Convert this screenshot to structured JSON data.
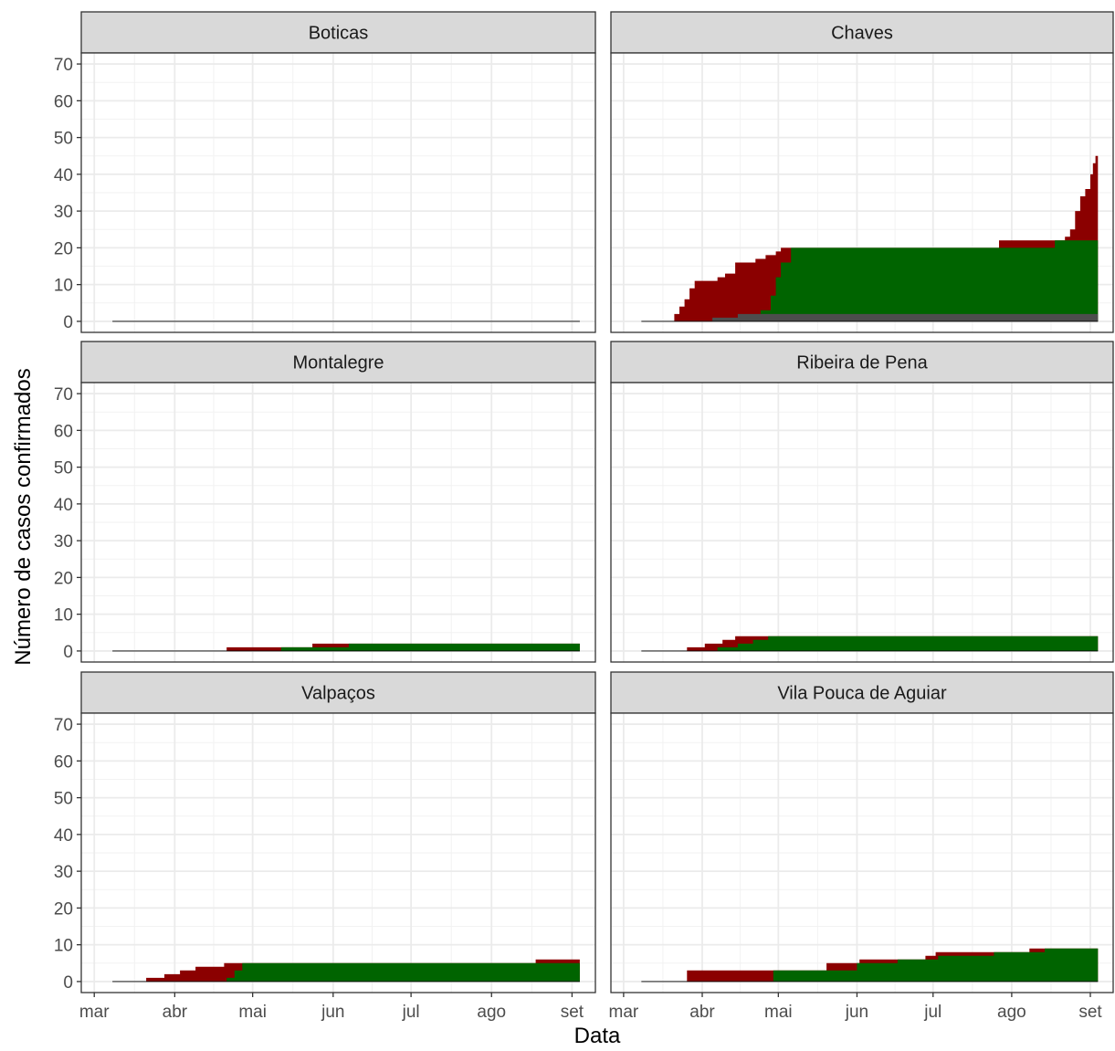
{
  "chart_data": {
    "type": "area",
    "xlabel": "Data",
    "ylabel": "Número de casos confirmados",
    "ylim": [
      -3,
      73
    ],
    "xlim": [
      "2020-02-25",
      "2020-09-10"
    ],
    "y_ticks": [
      0,
      10,
      20,
      30,
      40,
      50,
      60,
      70
    ],
    "x_ticks": [
      {
        "date": "2020-03-01",
        "label": "mar"
      },
      {
        "date": "2020-04-01",
        "label": "abr"
      },
      {
        "date": "2020-05-01",
        "label": "mai"
      },
      {
        "date": "2020-06-01",
        "label": "jun"
      },
      {
        "date": "2020-07-01",
        "label": "jul"
      },
      {
        "date": "2020-08-01",
        "label": "ago"
      },
      {
        "date": "2020-09-01",
        "label": "set"
      }
    ],
    "grid": true,
    "colors": {
      "active": "#8b0000",
      "recovered": "#006400",
      "deaths": "#4d4d4d",
      "strip_bg": "#d9d9d9",
      "grid": "#ebebeb"
    },
    "facets": [
      {
        "name": "Boticas",
        "active": [
          [
            "2020-03-08",
            0
          ],
          [
            "2020-09-04",
            0
          ]
        ],
        "recovered": [
          [
            "2020-03-08",
            0
          ],
          [
            "2020-09-04",
            0
          ]
        ],
        "deaths": [
          [
            "2020-03-08",
            0
          ],
          [
            "2020-09-04",
            0
          ]
        ]
      },
      {
        "name": "Chaves",
        "active": [
          [
            "2020-03-08",
            0
          ],
          [
            "2020-03-20",
            0
          ],
          [
            "2020-03-21",
            2
          ],
          [
            "2020-03-23",
            4
          ],
          [
            "2020-03-25",
            6
          ],
          [
            "2020-03-27",
            9
          ],
          [
            "2020-03-29",
            11
          ],
          [
            "2020-04-06",
            11
          ],
          [
            "2020-04-07",
            12
          ],
          [
            "2020-04-10",
            13
          ],
          [
            "2020-04-14",
            16
          ],
          [
            "2020-04-20",
            16
          ],
          [
            "2020-04-22",
            17
          ],
          [
            "2020-04-26",
            18
          ],
          [
            "2020-04-30",
            19
          ],
          [
            "2020-05-02",
            20
          ],
          [
            "2020-05-15",
            20
          ],
          [
            "2020-05-16",
            20
          ],
          [
            "2020-07-26",
            20
          ],
          [
            "2020-07-27",
            22
          ],
          [
            "2020-08-10",
            22
          ],
          [
            "2020-08-12",
            22
          ],
          [
            "2020-08-20",
            22
          ],
          [
            "2020-08-22",
            23
          ],
          [
            "2020-08-24",
            25
          ],
          [
            "2020-08-26",
            30
          ],
          [
            "2020-08-28",
            34
          ],
          [
            "2020-08-30",
            36
          ],
          [
            "2020-09-01",
            40
          ],
          [
            "2020-09-02",
            43
          ],
          [
            "2020-09-03",
            45
          ],
          [
            "2020-09-04",
            45
          ]
        ],
        "recovered": [
          [
            "2020-03-08",
            0
          ],
          [
            "2020-04-14",
            0
          ],
          [
            "2020-04-20",
            1
          ],
          [
            "2020-04-24",
            3
          ],
          [
            "2020-04-28",
            7
          ],
          [
            "2020-04-30",
            12
          ],
          [
            "2020-05-02",
            16
          ],
          [
            "2020-05-06",
            20
          ],
          [
            "2020-05-15",
            20
          ],
          [
            "2020-08-16",
            20
          ],
          [
            "2020-08-18",
            22
          ],
          [
            "2020-09-04",
            22
          ]
        ],
        "deaths": [
          [
            "2020-03-08",
            0
          ],
          [
            "2020-04-04",
            0
          ],
          [
            "2020-04-05",
            1
          ],
          [
            "2020-04-12",
            1
          ],
          [
            "2020-04-15",
            2
          ],
          [
            "2020-09-04",
            2
          ]
        ]
      },
      {
        "name": "Montalegre",
        "active": [
          [
            "2020-03-08",
            0
          ],
          [
            "2020-04-20",
            0
          ],
          [
            "2020-04-21",
            1
          ],
          [
            "2020-05-23",
            1
          ],
          [
            "2020-05-24",
            2
          ],
          [
            "2020-09-04",
            2
          ]
        ],
        "recovered": [
          [
            "2020-03-08",
            0
          ],
          [
            "2020-05-11",
            0
          ],
          [
            "2020-05-12",
            1
          ],
          [
            "2020-06-06",
            1
          ],
          [
            "2020-06-07",
            2
          ],
          [
            "2020-09-04",
            2
          ]
        ],
        "deaths": [
          [
            "2020-03-08",
            0
          ],
          [
            "2020-09-04",
            0
          ]
        ]
      },
      {
        "name": "Ribeira de Pena",
        "active": [
          [
            "2020-03-08",
            0
          ],
          [
            "2020-03-25",
            0
          ],
          [
            "2020-03-26",
            1
          ],
          [
            "2020-04-02",
            2
          ],
          [
            "2020-04-09",
            3
          ],
          [
            "2020-04-14",
            4
          ],
          [
            "2020-09-04",
            4
          ]
        ],
        "recovered": [
          [
            "2020-03-08",
            0
          ],
          [
            "2020-04-06",
            0
          ],
          [
            "2020-04-07",
            1
          ],
          [
            "2020-04-15",
            2
          ],
          [
            "2020-04-21",
            3
          ],
          [
            "2020-04-27",
            4
          ],
          [
            "2020-09-04",
            4
          ]
        ],
        "deaths": [
          [
            "2020-03-08",
            0
          ],
          [
            "2020-09-04",
            0
          ]
        ]
      },
      {
        "name": "Valpaços",
        "active": [
          [
            "2020-03-08",
            0
          ],
          [
            "2020-03-20",
            0
          ],
          [
            "2020-03-21",
            1
          ],
          [
            "2020-03-28",
            2
          ],
          [
            "2020-04-03",
            3
          ],
          [
            "2020-04-09",
            4
          ],
          [
            "2020-04-20",
            5
          ],
          [
            "2020-08-17",
            5
          ],
          [
            "2020-08-18",
            6
          ],
          [
            "2020-09-04",
            6
          ]
        ],
        "recovered": [
          [
            "2020-03-08",
            0
          ],
          [
            "2020-04-20",
            0
          ],
          [
            "2020-04-21",
            1
          ],
          [
            "2020-04-24",
            3
          ],
          [
            "2020-04-27",
            5
          ],
          [
            "2020-09-04",
            5
          ]
        ],
        "deaths": [
          [
            "2020-03-08",
            0
          ],
          [
            "2020-09-04",
            0
          ]
        ]
      },
      {
        "name": "Vila Pouca de Aguiar",
        "active": [
          [
            "2020-03-08",
            0
          ],
          [
            "2020-03-25",
            0
          ],
          [
            "2020-03-26",
            3
          ],
          [
            "2020-05-19",
            3
          ],
          [
            "2020-05-20",
            5
          ],
          [
            "2020-06-02",
            6
          ],
          [
            "2020-06-28",
            7
          ],
          [
            "2020-07-02",
            8
          ],
          [
            "2020-07-27",
            8
          ],
          [
            "2020-08-08",
            9
          ],
          [
            "2020-09-03",
            9
          ],
          [
            "2020-09-04",
            13
          ],
          [
            "2020-09-04",
            13
          ]
        ],
        "recovered": [
          [
            "2020-03-08",
            0
          ],
          [
            "2020-04-28",
            0
          ],
          [
            "2020-04-29",
            3
          ],
          [
            "2020-05-20",
            3
          ],
          [
            "2020-06-01",
            5
          ],
          [
            "2020-06-17",
            6
          ],
          [
            "2020-07-03",
            7
          ],
          [
            "2020-07-18",
            7
          ],
          [
            "2020-07-25",
            8
          ],
          [
            "2020-08-12",
            8
          ],
          [
            "2020-08-14",
            9
          ],
          [
            "2020-09-04",
            9
          ]
        ],
        "deaths": [
          [
            "2020-03-08",
            0
          ],
          [
            "2020-09-04",
            0
          ]
        ]
      }
    ]
  }
}
